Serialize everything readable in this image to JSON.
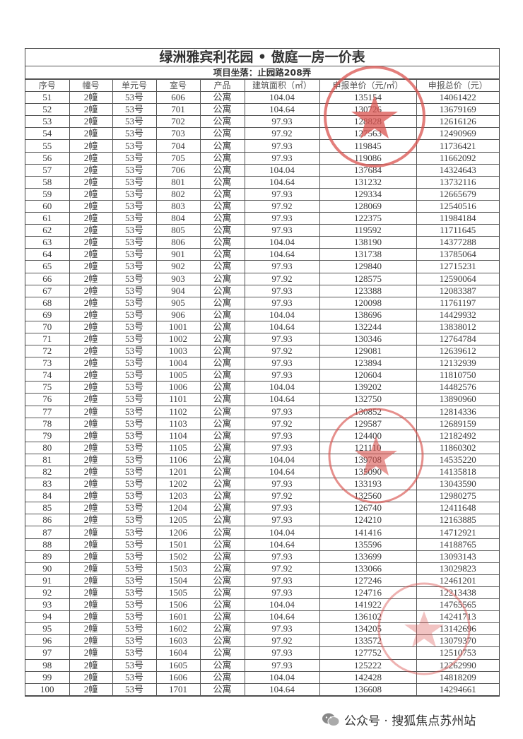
{
  "document": {
    "title": "绿洲雅宾利花园 • 傲庭一房一价表",
    "subtitle": "项目坐落：止园路208弄",
    "columns": [
      "序号",
      "幢号",
      "单元号",
      "室号",
      "产品",
      "建筑面积（㎡）",
      "申报单价（元/㎡）",
      "申报总价（元）"
    ],
    "rows": [
      [
        "51",
        "2幢",
        "53号",
        "606",
        "公寓",
        "104.04",
        "135154",
        "14061422"
      ],
      [
        "52",
        "2幢",
        "53号",
        "701",
        "公寓",
        "104.64",
        "130726",
        "13679169"
      ],
      [
        "53",
        "2幢",
        "53号",
        "702",
        "公寓",
        "97.93",
        "128828",
        "12616126"
      ],
      [
        "54",
        "2幢",
        "53号",
        "703",
        "公寓",
        "97.92",
        "127563",
        "12490969"
      ],
      [
        "55",
        "2幢",
        "53号",
        "704",
        "公寓",
        "97.93",
        "119845",
        "11736421"
      ],
      [
        "56",
        "2幢",
        "53号",
        "705",
        "公寓",
        "97.93",
        "119086",
        "11662092"
      ],
      [
        "57",
        "2幢",
        "53号",
        "706",
        "公寓",
        "104.04",
        "137684",
        "14324643"
      ],
      [
        "58",
        "2幢",
        "53号",
        "801",
        "公寓",
        "104.64",
        "131232",
        "13732116"
      ],
      [
        "59",
        "2幢",
        "53号",
        "802",
        "公寓",
        "97.93",
        "129334",
        "12665679"
      ],
      [
        "60",
        "2幢",
        "53号",
        "803",
        "公寓",
        "97.92",
        "128069",
        "12540516"
      ],
      [
        "61",
        "2幢",
        "53号",
        "804",
        "公寓",
        "97.93",
        "122375",
        "11984184"
      ],
      [
        "62",
        "2幢",
        "53号",
        "805",
        "公寓",
        "97.93",
        "119592",
        "11711645"
      ],
      [
        "63",
        "2幢",
        "53号",
        "806",
        "公寓",
        "104.04",
        "138190",
        "14377288"
      ],
      [
        "64",
        "2幢",
        "53号",
        "901",
        "公寓",
        "104.64",
        "131738",
        "13785064"
      ],
      [
        "65",
        "2幢",
        "53号",
        "902",
        "公寓",
        "97.93",
        "129840",
        "12715231"
      ],
      [
        "66",
        "2幢",
        "53号",
        "903",
        "公寓",
        "97.92",
        "128575",
        "12590064"
      ],
      [
        "67",
        "2幢",
        "53号",
        "904",
        "公寓",
        "97.93",
        "123388",
        "12083387"
      ],
      [
        "68",
        "2幢",
        "53号",
        "905",
        "公寓",
        "97.93",
        "120098",
        "11761197"
      ],
      [
        "69",
        "2幢",
        "53号",
        "906",
        "公寓",
        "104.04",
        "138696",
        "14429932"
      ],
      [
        "70",
        "2幢",
        "53号",
        "1001",
        "公寓",
        "104.64",
        "132244",
        "13838012"
      ],
      [
        "71",
        "2幢",
        "53号",
        "1002",
        "公寓",
        "97.93",
        "130346",
        "12764784"
      ],
      [
        "72",
        "2幢",
        "53号",
        "1003",
        "公寓",
        "97.92",
        "129081",
        "12639612"
      ],
      [
        "73",
        "2幢",
        "53号",
        "1004",
        "公寓",
        "97.93",
        "123894",
        "12132939"
      ],
      [
        "74",
        "2幢",
        "53号",
        "1005",
        "公寓",
        "97.93",
        "120604",
        "11810750"
      ],
      [
        "75",
        "2幢",
        "53号",
        "1006",
        "公寓",
        "104.04",
        "139202",
        "14482576"
      ],
      [
        "76",
        "2幢",
        "53号",
        "1101",
        "公寓",
        "104.64",
        "132750",
        "13890960"
      ],
      [
        "77",
        "2幢",
        "53号",
        "1102",
        "公寓",
        "97.93",
        "130852",
        "12814336"
      ],
      [
        "78",
        "2幢",
        "53号",
        "1103",
        "公寓",
        "97.92",
        "129587",
        "12689159"
      ],
      [
        "79",
        "2幢",
        "53号",
        "1104",
        "公寓",
        "97.93",
        "124400",
        "12182492"
      ],
      [
        "80",
        "2幢",
        "53号",
        "1105",
        "公寓",
        "97.93",
        "121110",
        "11860302"
      ],
      [
        "81",
        "2幢",
        "53号",
        "1106",
        "公寓",
        "104.04",
        "139708",
        "14535220"
      ],
      [
        "82",
        "2幢",
        "53号",
        "1201",
        "公寓",
        "104.64",
        "135090",
        "14135818"
      ],
      [
        "83",
        "2幢",
        "53号",
        "1202",
        "公寓",
        "97.93",
        "133193",
        "13043590"
      ],
      [
        "84",
        "2幢",
        "53号",
        "1203",
        "公寓",
        "97.92",
        "132560",
        "12980275"
      ],
      [
        "85",
        "2幢",
        "53号",
        "1204",
        "公寓",
        "97.93",
        "126740",
        "12411648"
      ],
      [
        "86",
        "2幢",
        "53号",
        "1205",
        "公寓",
        "97.93",
        "124210",
        "12163885"
      ],
      [
        "87",
        "2幢",
        "53号",
        "1206",
        "公寓",
        "104.04",
        "141416",
        "14712921"
      ],
      [
        "88",
        "2幢",
        "53号",
        "1501",
        "公寓",
        "104.64",
        "135596",
        "14188765"
      ],
      [
        "89",
        "2幢",
        "53号",
        "1502",
        "公寓",
        "97.93",
        "133699",
        "13093143"
      ],
      [
        "90",
        "2幢",
        "53号",
        "1503",
        "公寓",
        "97.92",
        "133066",
        "13029823"
      ],
      [
        "91",
        "2幢",
        "53号",
        "1504",
        "公寓",
        "97.93",
        "127246",
        "12461201"
      ],
      [
        "92",
        "2幢",
        "53号",
        "1505",
        "公寓",
        "97.93",
        "124716",
        "12213438"
      ],
      [
        "93",
        "2幢",
        "53号",
        "1506",
        "公寓",
        "104.04",
        "141922",
        "14765565"
      ],
      [
        "94",
        "2幢",
        "53号",
        "1601",
        "公寓",
        "104.64",
        "136102",
        "14241713"
      ],
      [
        "95",
        "2幢",
        "53号",
        "1602",
        "公寓",
        "97.93",
        "134205",
        "13142696"
      ],
      [
        "96",
        "2幢",
        "53号",
        "1603",
        "公寓",
        "97.92",
        "133572",
        "13079370"
      ],
      [
        "97",
        "2幢",
        "53号",
        "1604",
        "公寓",
        "97.93",
        "127752",
        "12510753"
      ],
      [
        "98",
        "2幢",
        "53号",
        "1605",
        "公寓",
        "97.93",
        "125222",
        "12262990"
      ],
      [
        "99",
        "2幢",
        "53号",
        "1606",
        "公寓",
        "104.04",
        "142428",
        "14818209"
      ],
      [
        "100",
        "2幢",
        "53号",
        "1701",
        "公寓",
        "104.64",
        "136608",
        "14294661"
      ]
    ]
  },
  "stamps": {
    "color": "#d9534f",
    "icon": "red-seal-stamp"
  },
  "watermark": {
    "icon": "wechat-icon",
    "text": "公众号 · 搜狐焦点苏州站"
  }
}
